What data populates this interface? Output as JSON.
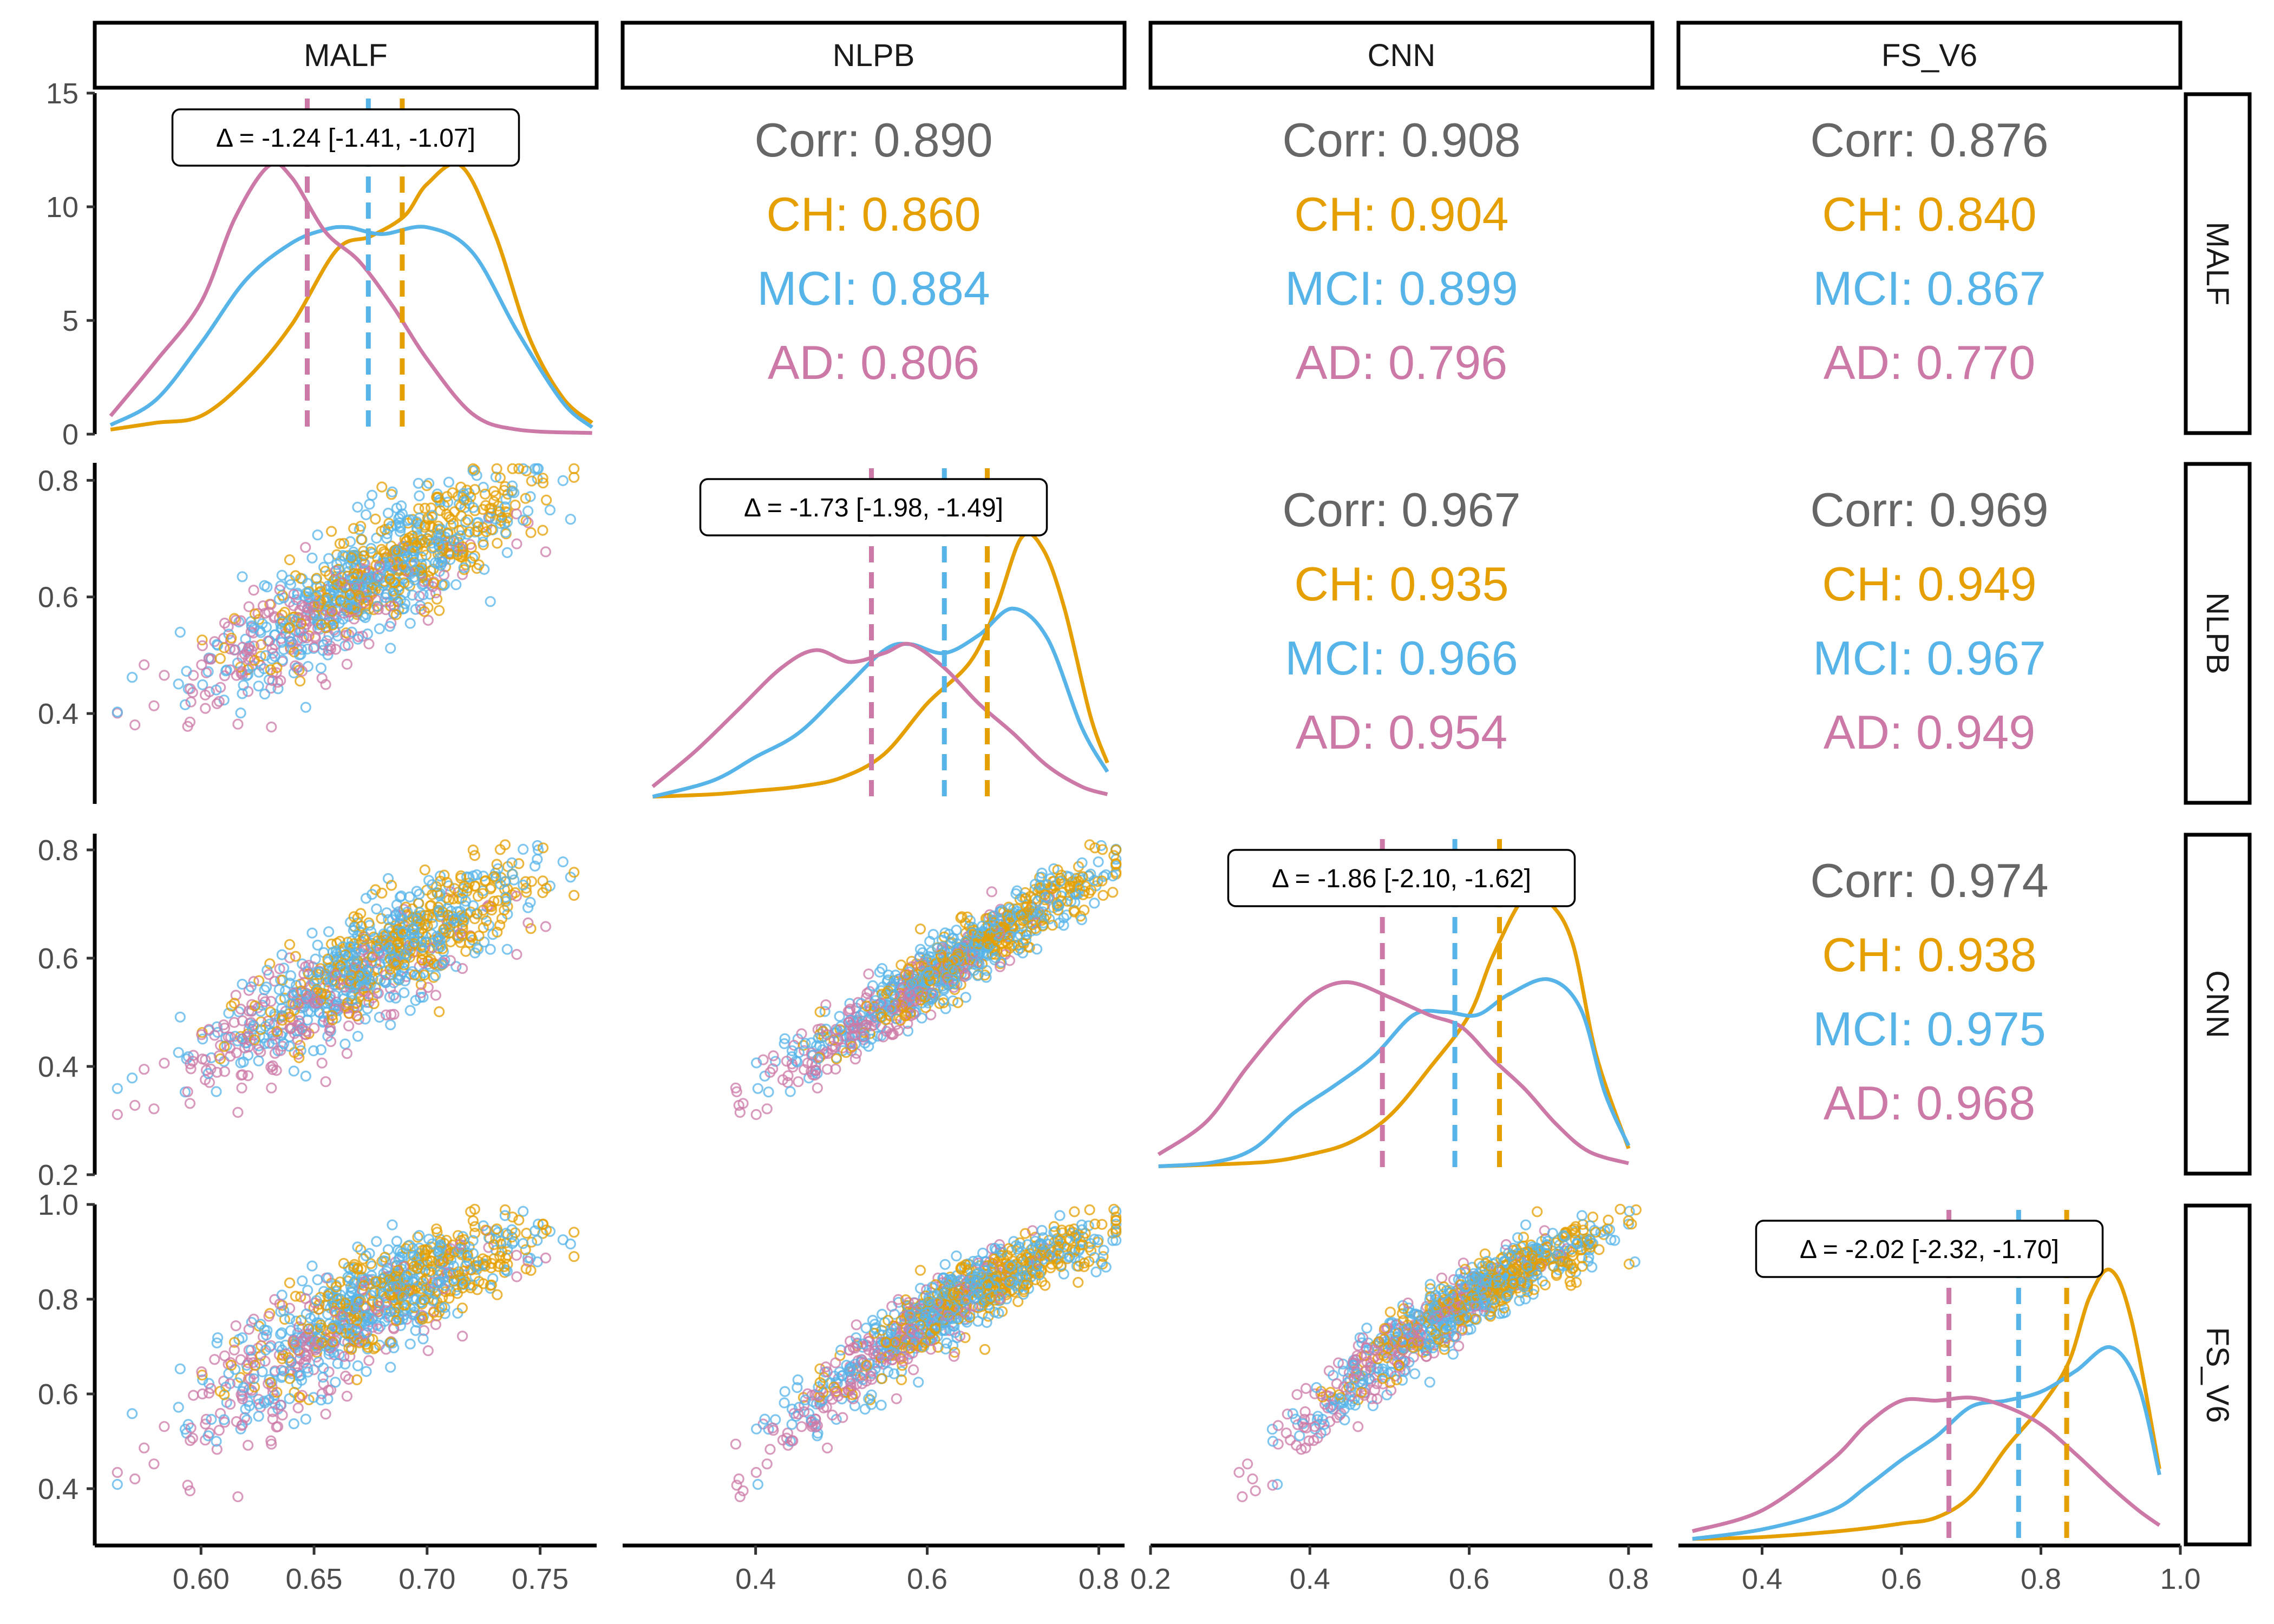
{
  "chart_data": {
    "type": "scatter-matrix",
    "variables": [
      "MALF",
      "NLPB",
      "CNN",
      "FS_V6"
    ],
    "groups": [
      {
        "name": "CH",
        "color": "#E69F00"
      },
      {
        "name": "MCI",
        "color": "#56B4E9"
      },
      {
        "name": "AD",
        "color": "#CC79A7"
      }
    ],
    "overall_color": "#666666",
    "axes": {
      "MALF": {
        "range": [
          0.553,
          0.775
        ],
        "ticks": [
          0.6,
          0.65,
          0.7,
          0.75
        ],
        "tick_labels": [
          "0.60",
          "0.65",
          "0.70",
          "0.75"
        ]
      },
      "NLPB": {
        "range": [
          0.245,
          0.83
        ],
        "ticks": [
          0.4,
          0.6,
          0.8
        ],
        "tick_labels": [
          "0.4",
          "0.6",
          "0.8"
        ]
      },
      "CNN": {
        "range": [
          0.2,
          0.83
        ],
        "ticks": [
          0.2,
          0.4,
          0.6,
          0.8
        ],
        "tick_labels": [
          "0.2",
          "0.4",
          "0.6",
          "0.8"
        ]
      },
      "FS_V6": {
        "range": [
          0.28,
          1.0
        ],
        "ticks": [
          0.4,
          0.6,
          0.8,
          1.0
        ],
        "tick_labels": [
          "0.4",
          "0.6",
          "0.8",
          "1.0"
        ]
      }
    },
    "left_axes": [
      {
        "row": "MALF",
        "range": [
          0,
          15
        ],
        "ticks": [
          0,
          5,
          10,
          15
        ],
        "tick_labels": [
          "0",
          "5",
          "10",
          "15"
        ]
      },
      {
        "row": "NLPB",
        "range": [
          0.245,
          0.83
        ],
        "ticks": [
          0.4,
          0.6,
          0.8
        ],
        "tick_labels": [
          "0.4",
          "0.6",
          "0.8"
        ]
      },
      {
        "row": "CNN",
        "range": [
          0.2,
          0.83
        ],
        "ticks": [
          0.2,
          0.4,
          0.6,
          0.8
        ],
        "tick_labels": [
          "0.2",
          "0.4",
          "0.6",
          "0.8"
        ]
      },
      {
        "row": "FS_V6",
        "range": [
          0.28,
          1.0
        ],
        "ticks": [
          0.4,
          0.6,
          0.8,
          1.0
        ],
        "tick_labels": [
          "0.4",
          "0.6",
          "0.8",
          "1.0"
        ]
      }
    ],
    "correlations": [
      {
        "row": "NLPB",
        "col": "MALF",
        "overall": "Corr: 0.890",
        "CH": "CH: 0.860",
        "MCI": "MCI: 0.884",
        "AD": "AD: 0.806"
      },
      {
        "row": "CNN",
        "col": "MALF",
        "overall": "Corr: 0.908",
        "CH": "CH: 0.904",
        "MCI": "MCI: 0.899",
        "AD": "AD: 0.796"
      },
      {
        "row": "FS_V6",
        "col": "MALF",
        "overall": "Corr: 0.876",
        "CH": "CH: 0.840",
        "MCI": "MCI: 0.867",
        "AD": "AD: 0.770"
      },
      {
        "row": "CNN",
        "col": "NLPB",
        "overall": "Corr: 0.967",
        "CH": "CH: 0.935",
        "MCI": "MCI: 0.966",
        "AD": "AD: 0.954"
      },
      {
        "row": "FS_V6",
        "col": "NLPB",
        "overall": "Corr: 0.969",
        "CH": "CH: 0.949",
        "MCI": "MCI: 0.967",
        "AD": "AD: 0.949"
      },
      {
        "row": "FS_V6",
        "col": "CNN",
        "overall": "Corr: 0.974",
        "CH": "CH: 0.938",
        "MCI": "MCI: 0.975",
        "AD": "AD: 0.968"
      }
    ],
    "diagonal": [
      {
        "var": "MALF",
        "delta": "Δ = -1.24 [-1.41, -1.07]",
        "means": {
          "CH": 0.689,
          "MCI": 0.674,
          "AD": 0.647
        },
        "density_ymax": 15,
        "densities": {
          "CH": [
            [
              0.56,
              0.2
            ],
            [
              0.58,
              0.5
            ],
            [
              0.6,
              0.8
            ],
            [
              0.62,
              2.4
            ],
            [
              0.64,
              4.8
            ],
            [
              0.66,
              8.1
            ],
            [
              0.675,
              8.7
            ],
            [
              0.69,
              9.6
            ],
            [
              0.7,
              11.0
            ],
            [
              0.715,
              11.8
            ],
            [
              0.73,
              8.8
            ],
            [
              0.745,
              4.3
            ],
            [
              0.76,
              1.6
            ],
            [
              0.773,
              0.5
            ]
          ],
          "MCI": [
            [
              0.56,
              0.4
            ],
            [
              0.58,
              1.5
            ],
            [
              0.6,
              4.0
            ],
            [
              0.62,
              6.8
            ],
            [
              0.64,
              8.4
            ],
            [
              0.655,
              9.0
            ],
            [
              0.665,
              9.1
            ],
            [
              0.68,
              8.8
            ],
            [
              0.7,
              9.1
            ],
            [
              0.72,
              8.0
            ],
            [
              0.74,
              4.5
            ],
            [
              0.76,
              1.4
            ],
            [
              0.773,
              0.3
            ]
          ],
          "AD": [
            [
              0.56,
              0.8
            ],
            [
              0.58,
              3.2
            ],
            [
              0.6,
              5.8
            ],
            [
              0.615,
              9.5
            ],
            [
              0.63,
              11.8
            ],
            [
              0.64,
              11.3
            ],
            [
              0.655,
              8.9
            ],
            [
              0.67,
              7.6
            ],
            [
              0.685,
              5.6
            ],
            [
              0.7,
              3.3
            ],
            [
              0.72,
              0.9
            ],
            [
              0.74,
              0.2
            ],
            [
              0.773,
              0.05
            ]
          ]
        }
      },
      {
        "var": "NLPB",
        "delta": "Δ = -1.73 [-1.98, -1.49]",
        "means": {
          "CH": 0.67,
          "MCI": 0.62,
          "AD": 0.535
        },
        "density_ymax": 5.2,
        "densities": {
          "CH": [
            [
              0.28,
              0.03
            ],
            [
              0.35,
              0.07
            ],
            [
              0.4,
              0.13
            ],
            [
              0.45,
              0.2
            ],
            [
              0.5,
              0.35
            ],
            [
              0.55,
              0.75
            ],
            [
              0.6,
              1.6
            ],
            [
              0.65,
              2.3
            ],
            [
              0.68,
              3.2
            ],
            [
              0.71,
              4.4
            ],
            [
              0.735,
              4.2
            ],
            [
              0.76,
              3.2
            ],
            [
              0.79,
              1.4
            ],
            [
              0.81,
              0.6
            ]
          ],
          "MCI": [
            [
              0.28,
              0.03
            ],
            [
              0.35,
              0.3
            ],
            [
              0.4,
              0.7
            ],
            [
              0.45,
              1.1
            ],
            [
              0.5,
              1.8
            ],
            [
              0.55,
              2.5
            ],
            [
              0.58,
              2.6
            ],
            [
              0.62,
              2.45
            ],
            [
              0.66,
              2.75
            ],
            [
              0.7,
              3.2
            ],
            [
              0.74,
              2.7
            ],
            [
              0.78,
              1.2
            ],
            [
              0.81,
              0.45
            ]
          ],
          "AD": [
            [
              0.28,
              0.2
            ],
            [
              0.33,
              0.8
            ],
            [
              0.38,
              1.5
            ],
            [
              0.43,
              2.2
            ],
            [
              0.47,
              2.5
            ],
            [
              0.51,
              2.3
            ],
            [
              0.55,
              2.45
            ],
            [
              0.58,
              2.6
            ],
            [
              0.62,
              2.2
            ],
            [
              0.66,
              1.6
            ],
            [
              0.7,
              1.1
            ],
            [
              0.74,
              0.55
            ],
            [
              0.78,
              0.2
            ],
            [
              0.81,
              0.07
            ]
          ]
        }
      },
      {
        "var": "CNN",
        "delta": "Δ = -1.86 [-2.10, -1.62]",
        "means": {
          "CH": 0.638,
          "MCI": 0.582,
          "AD": 0.491
        },
        "density_ymax": 5.2,
        "densities": {
          "CH": [
            [
              0.21,
              0.05
            ],
            [
              0.28,
              0.08
            ],
            [
              0.35,
              0.13
            ],
            [
              0.4,
              0.25
            ],
            [
              0.45,
              0.45
            ],
            [
              0.5,
              0.9
            ],
            [
              0.55,
              1.7
            ],
            [
              0.6,
              2.6
            ],
            [
              0.63,
              3.6
            ],
            [
              0.67,
              4.6
            ],
            [
              0.7,
              4.5
            ],
            [
              0.73,
              3.8
            ],
            [
              0.76,
              1.9
            ],
            [
              0.8,
              0.35
            ]
          ],
          "MCI": [
            [
              0.21,
              0.05
            ],
            [
              0.28,
              0.12
            ],
            [
              0.33,
              0.35
            ],
            [
              0.38,
              0.95
            ],
            [
              0.43,
              1.4
            ],
            [
              0.48,
              1.9
            ],
            [
              0.53,
              2.6
            ],
            [
              0.57,
              2.65
            ],
            [
              0.61,
              2.6
            ],
            [
              0.65,
              2.95
            ],
            [
              0.7,
              3.2
            ],
            [
              0.74,
              2.7
            ],
            [
              0.77,
              1.3
            ],
            [
              0.8,
              0.4
            ]
          ],
          "AD": [
            [
              0.21,
              0.25
            ],
            [
              0.27,
              0.8
            ],
            [
              0.32,
              1.7
            ],
            [
              0.37,
              2.5
            ],
            [
              0.41,
              3.0
            ],
            [
              0.45,
              3.15
            ],
            [
              0.5,
              2.9
            ],
            [
              0.55,
              2.6
            ],
            [
              0.59,
              2.4
            ],
            [
              0.63,
              1.85
            ],
            [
              0.67,
              1.35
            ],
            [
              0.71,
              0.75
            ],
            [
              0.75,
              0.3
            ],
            [
              0.8,
              0.1
            ]
          ]
        }
      },
      {
        "var": "FS_V6",
        "delta": "Δ = -2.02 [-2.32, -1.70]",
        "means": {
          "CH": 0.837,
          "MCI": 0.768,
          "AD": 0.668
        },
        "density_ymax": 5.2,
        "densities": {
          "CH": [
            [
              0.3,
              0.02
            ],
            [
              0.4,
              0.05
            ],
            [
              0.5,
              0.14
            ],
            [
              0.55,
              0.2
            ],
            [
              0.6,
              0.28
            ],
            [
              0.65,
              0.38
            ],
            [
              0.7,
              0.75
            ],
            [
              0.75,
              1.55
            ],
            [
              0.8,
              2.25
            ],
            [
              0.84,
              3.0
            ],
            [
              0.87,
              4.1
            ],
            [
              0.9,
              4.55
            ],
            [
              0.93,
              3.7
            ],
            [
              0.97,
              1.2
            ]
          ],
          "MCI": [
            [
              0.3,
              0.02
            ],
            [
              0.4,
              0.18
            ],
            [
              0.5,
              0.5
            ],
            [
              0.55,
              0.9
            ],
            [
              0.6,
              1.35
            ],
            [
              0.65,
              1.75
            ],
            [
              0.7,
              2.25
            ],
            [
              0.75,
              2.35
            ],
            [
              0.8,
              2.5
            ],
            [
              0.85,
              2.85
            ],
            [
              0.9,
              3.25
            ],
            [
              0.94,
              2.6
            ],
            [
              0.97,
              1.1
            ]
          ],
          "AD": [
            [
              0.3,
              0.15
            ],
            [
              0.4,
              0.5
            ],
            [
              0.5,
              1.35
            ],
            [
              0.55,
              1.95
            ],
            [
              0.6,
              2.35
            ],
            [
              0.65,
              2.35
            ],
            [
              0.7,
              2.4
            ],
            [
              0.75,
              2.25
            ],
            [
              0.8,
              1.95
            ],
            [
              0.85,
              1.45
            ],
            [
              0.9,
              0.9
            ],
            [
              0.94,
              0.5
            ],
            [
              0.97,
              0.25
            ]
          ]
        }
      }
    ]
  }
}
